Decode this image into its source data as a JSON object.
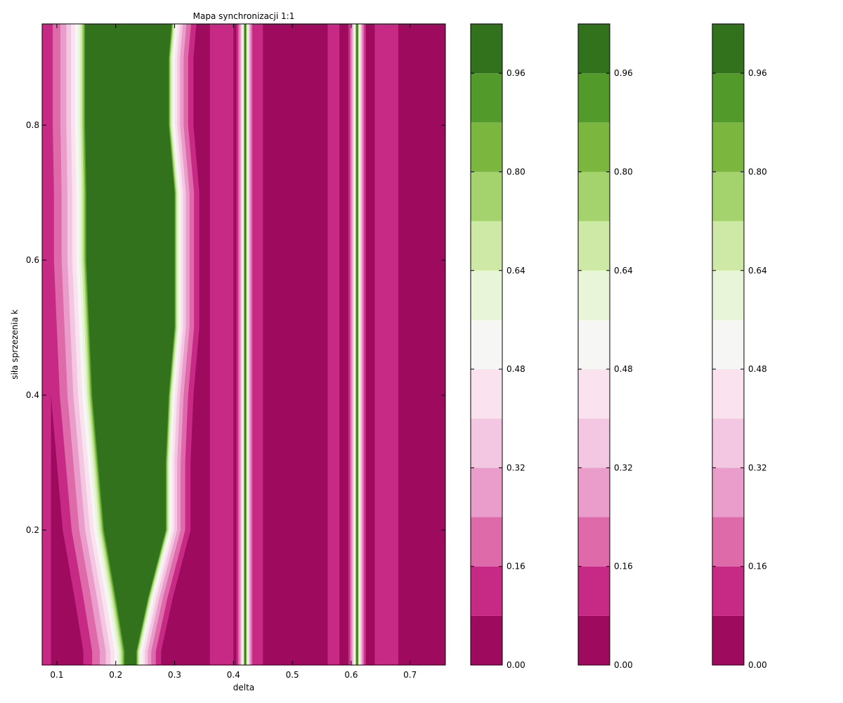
{
  "chart_data": {
    "type": "contourf",
    "title": "Mapa synchronizacji 1:1",
    "xlabel": "delta",
    "ylabel": "siła sprzezenia k",
    "xlim": [
      0.075,
      0.76
    ],
    "ylim": [
      0.0,
      0.95
    ],
    "x_ticks": [
      0.1,
      0.2,
      0.3,
      0.4,
      0.5,
      0.6,
      0.7
    ],
    "y_ticks": [
      0.2,
      0.4,
      0.6,
      0.8
    ],
    "x_tick_labels": [
      "0.1",
      "0.2",
      "0.3",
      "0.4",
      "0.5",
      "0.6",
      "0.7"
    ],
    "y_tick_labels": [
      "0.2",
      "0.4",
      "0.6",
      "0.8"
    ],
    "levels": [
      0.0,
      0.08,
      0.16,
      0.24,
      0.32,
      0.4,
      0.48,
      0.56,
      0.64,
      0.72,
      0.8,
      0.88,
      0.96,
      1.04
    ],
    "level_colors": [
      "#9e0b5e",
      "#c72a84",
      "#de6aa9",
      "#ea9dcb",
      "#f3c6e1",
      "#fae2ef",
      "#f6f6f5",
      "#e8f5d8",
      "#cde9a5",
      "#a4d36e",
      "#7bb73f",
      "#529b2b",
      "#32721d"
    ],
    "colorbar_ticks": [
      0.0,
      0.16,
      0.32,
      0.48,
      0.64,
      0.8,
      0.96
    ],
    "colorbar_tick_labels": [
      "0.00",
      "0.16",
      "0.32",
      "0.48",
      "0.64",
      "0.80",
      "0.96"
    ],
    "colorbar_count": 3,
    "regions_note": "synchronization index: high (green) tongue around delta 0.16–0.30 widening with k, narrow bands near delta 0.41–0.43 and 0.59–0.63, low (magenta) elsewhere",
    "green_tongue": {
      "k": [
        0.02,
        0.1,
        0.2,
        0.3,
        0.4,
        0.5,
        0.6,
        0.7,
        0.8,
        0.9,
        0.95
      ],
      "left_delta": [
        0.215,
        0.2,
        0.18,
        0.17,
        0.16,
        0.155,
        0.15,
        0.15,
        0.148,
        0.148,
        0.148
      ],
      "right_delta": [
        0.235,
        0.255,
        0.285,
        0.285,
        0.29,
        0.3,
        0.3,
        0.3,
        0.29,
        0.29,
        0.295
      ]
    },
    "narrow_bands_delta": [
      0.42,
      0.61
    ]
  }
}
